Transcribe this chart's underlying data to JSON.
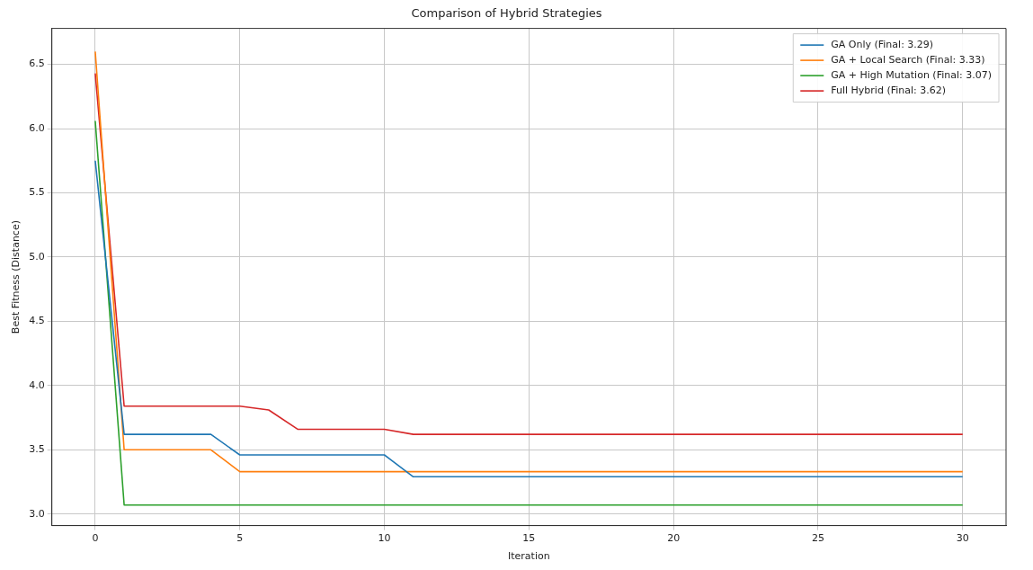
{
  "chart_data": {
    "type": "line",
    "title": "Comparison of Hybrid Strategies",
    "xlabel": "Iteration",
    "ylabel": "Best Fitness (Distance)",
    "xlim": [
      -1.5,
      31.5
    ],
    "xticks": [
      0,
      5,
      10,
      15,
      20,
      25,
      30
    ],
    "ylim": [
      2.91,
      6.78
    ],
    "yticks": [
      {
        "value": 3,
        "label": "3.0"
      },
      3.5,
      {
        "value": 4,
        "label": "4.0"
      },
      4.5,
      {
        "value": 5,
        "label": "5.0"
      },
      5.5,
      {
        "value": 6,
        "label": "6.0"
      },
      6.5
    ],
    "grid": true,
    "legend": "top right",
    "marker": "none",
    "line_style": "solid",
    "series": [
      {
        "name": "GA Only (Final: 3.29)",
        "color": "#1f77b4",
        "x": [
          0,
          1,
          4,
          5,
          10,
          11,
          30
        ],
        "values": [
          5.75,
          3.62,
          3.62,
          3.46,
          3.46,
          3.29,
          3.29
        ]
      },
      {
        "name": "GA + Local Search (Final: 3.33)",
        "color": "#ff7f0e",
        "x": [
          0,
          1,
          4,
          5,
          30
        ],
        "values": [
          6.6,
          3.5,
          3.5,
          3.33,
          3.33
        ]
      },
      {
        "name": "GA + High Mutation (Final: 3.07)",
        "color": "#2ca02c",
        "x": [
          0,
          1,
          30
        ],
        "values": [
          6.06,
          3.07,
          3.07
        ]
      },
      {
        "name": "Full Hybrid (Final: 3.62)",
        "color": "#d62728",
        "x": [
          0,
          1,
          5,
          6,
          7,
          10,
          11,
          30
        ],
        "values": [
          6.43,
          3.84,
          3.84,
          3.81,
          3.66,
          3.66,
          3.62,
          3.62
        ]
      }
    ]
  }
}
